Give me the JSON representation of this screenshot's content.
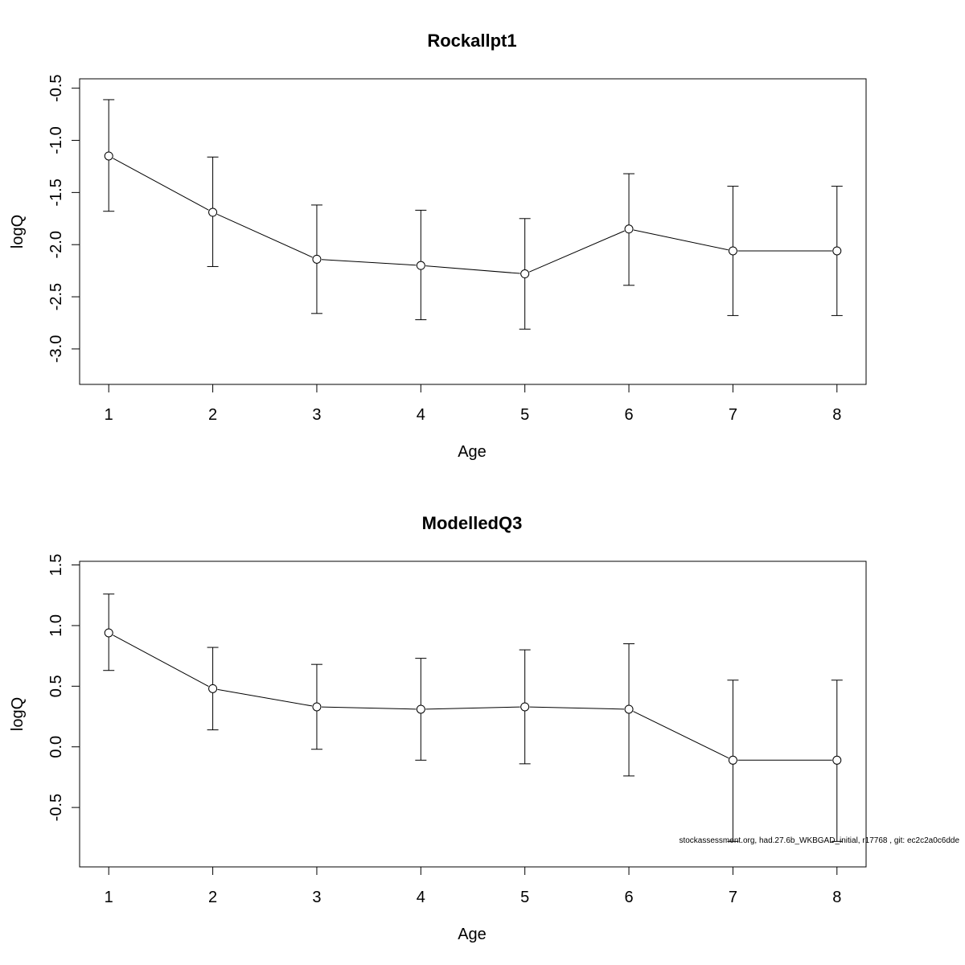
{
  "footer": "stockassessment.org, had.27.6b_WKBGAD_initial, r17768 , git: ec2c2a0c6dde",
  "chart_data": [
    {
      "type": "line",
      "title": "Rockallpt1",
      "xlabel": "Age",
      "ylabel": "logQ",
      "xlim": [
        0.72,
        8.28
      ],
      "ylim": [
        -3.34,
        -0.41
      ],
      "x_ticks": [
        1,
        2,
        3,
        4,
        5,
        6,
        7,
        8
      ],
      "y_ticks": [
        -0.5,
        -1.0,
        -1.5,
        -2.0,
        -2.5,
        -3.0
      ],
      "y_tick_labels": [
        "-0.5",
        "-1.0",
        "-1.5",
        "-2.0",
        "-2.5",
        "-3.0"
      ],
      "grid": false,
      "x": [
        1,
        2,
        3,
        4,
        5,
        6,
        7,
        8
      ],
      "values": [
        -1.15,
        -1.69,
        -2.14,
        -2.2,
        -2.28,
        -1.85,
        -2.06,
        -2.06
      ],
      "lower": [
        -1.68,
        -2.21,
        -2.66,
        -2.72,
        -2.81,
        -2.39,
        -2.68,
        -2.68
      ],
      "upper": [
        -0.61,
        -1.16,
        -1.62,
        -1.67,
        -1.75,
        -1.32,
        -1.44,
        -1.44
      ]
    },
    {
      "type": "line",
      "title": "ModelledQ3",
      "xlabel": "Age",
      "ylabel": "logQ",
      "xlim": [
        0.72,
        8.28
      ],
      "ylim": [
        -0.99,
        1.53
      ],
      "x_ticks": [
        1,
        2,
        3,
        4,
        5,
        6,
        7,
        8
      ],
      "y_ticks": [
        1.5,
        1.0,
        0.5,
        0.0,
        -0.5
      ],
      "y_tick_labels": [
        "1.5",
        "1.0",
        "0.5",
        "0.0",
        "-0.5"
      ],
      "grid": false,
      "x": [
        1,
        2,
        3,
        4,
        5,
        6,
        7,
        8
      ],
      "values": [
        0.94,
        0.48,
        0.33,
        0.31,
        0.33,
        0.31,
        -0.11,
        -0.11
      ],
      "lower": [
        0.63,
        0.14,
        -0.02,
        -0.11,
        -0.14,
        -0.24,
        -0.78,
        -0.78
      ],
      "upper": [
        1.26,
        0.82,
        0.68,
        0.73,
        0.8,
        0.85,
        0.55,
        0.55
      ]
    }
  ]
}
